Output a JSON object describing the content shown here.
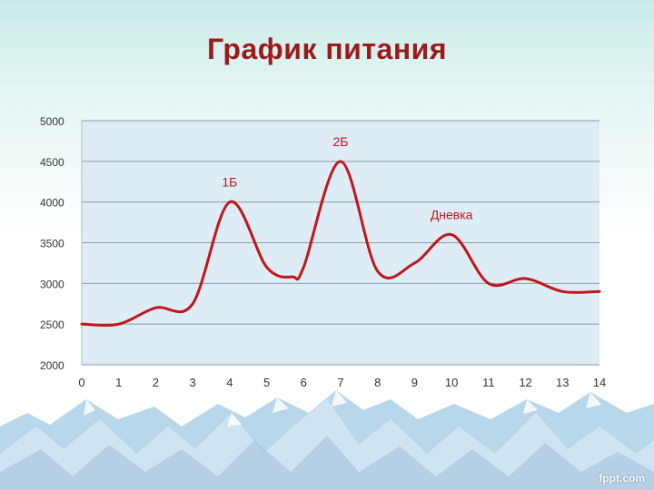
{
  "slide": {
    "title": "График питания",
    "watermark": "fppt.com"
  },
  "colors": {
    "line": "#c0161c",
    "title": "#9b1b1b",
    "plot_bg": "#deedf5",
    "grid": "#8a9aa8",
    "axis_text": "#333333"
  },
  "chart_data": {
    "type": "line",
    "title": "",
    "xlabel": "",
    "ylabel": "",
    "xlim": [
      0,
      14
    ],
    "ylim": [
      2000,
      5000
    ],
    "xticks": [
      "0",
      "1",
      "2",
      "3",
      "4",
      "5",
      "6",
      "7",
      "8",
      "9",
      "10",
      "11",
      "12",
      "13",
      "14"
    ],
    "yticks": [
      "2000",
      "2500",
      "3000",
      "3500",
      "4000",
      "4500",
      "5000"
    ],
    "grid": true,
    "legend": "none",
    "series": [
      {
        "x": [
          0,
          1,
          2,
          3,
          4,
          5,
          5.7,
          6,
          7,
          8,
          9,
          10,
          11,
          12,
          13,
          14
        ],
        "values": [
          2500,
          2500,
          2700,
          2750,
          4000,
          3200,
          3080,
          3200,
          4500,
          3150,
          3250,
          3600,
          3000,
          3060,
          2900,
          2900
        ]
      }
    ],
    "annotations": [
      {
        "text": "1Б",
        "x": 4,
        "y": 4000
      },
      {
        "text": "2Б",
        "x": 7,
        "y": 4500
      },
      {
        "text": "Дневка",
        "x": 10,
        "y": 3600
      }
    ]
  }
}
